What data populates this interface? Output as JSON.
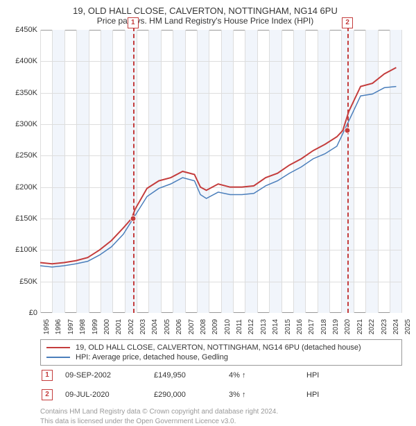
{
  "title_line1": "19, OLD HALL CLOSE, CALVERTON, NOTTINGHAM, NG14 6PU",
  "title_line2": "Price paid vs. HM Land Registry's House Price Index (HPI)",
  "chart": {
    "type": "line",
    "background_color": "#ffffff",
    "alt_band_color": "#f1f5fb",
    "grid_color": "#dddddd",
    "border_color": "#999999",
    "ylim": [
      0,
      450000
    ],
    "ytick_step": 50000,
    "yticklabels": [
      "£0",
      "£50K",
      "£100K",
      "£150K",
      "£200K",
      "£250K",
      "£300K",
      "£350K",
      "£400K",
      "£450K"
    ],
    "xyears": [
      1995,
      1996,
      1997,
      1998,
      1999,
      2000,
      2001,
      2002,
      2003,
      2004,
      2005,
      2006,
      2007,
      2008,
      2009,
      2010,
      2011,
      2012,
      2013,
      2014,
      2015,
      2016,
      2017,
      2018,
      2019,
      2020,
      2021,
      2022,
      2023,
      2024,
      2025
    ],
    "x_domain": [
      1995,
      2025.5
    ],
    "series": [
      {
        "name": "property",
        "label": "19, OLD HALL CLOSE, CALVERTON, NOTTINGHAM, NG14 6PU (detached house)",
        "color": "#c43c3c",
        "line_width": 2,
        "points": [
          [
            1995,
            80000
          ],
          [
            1996,
            78000
          ],
          [
            1997,
            80000
          ],
          [
            1998,
            83000
          ],
          [
            1999,
            88000
          ],
          [
            2000,
            100000
          ],
          [
            2001,
            115000
          ],
          [
            2002,
            135000
          ],
          [
            2002.7,
            150000
          ],
          [
            2003,
            165000
          ],
          [
            2004,
            198000
          ],
          [
            2005,
            210000
          ],
          [
            2006,
            215000
          ],
          [
            2007,
            225000
          ],
          [
            2008,
            220000
          ],
          [
            2008.5,
            200000
          ],
          [
            2009,
            195000
          ],
          [
            2010,
            205000
          ],
          [
            2011,
            200000
          ],
          [
            2012,
            200000
          ],
          [
            2013,
            202000
          ],
          [
            2014,
            215000
          ],
          [
            2015,
            222000
          ],
          [
            2016,
            235000
          ],
          [
            2017,
            245000
          ],
          [
            2018,
            258000
          ],
          [
            2019,
            268000
          ],
          [
            2020,
            280000
          ],
          [
            2020.5,
            290000
          ],
          [
            2021,
            320000
          ],
          [
            2022,
            360000
          ],
          [
            2023,
            365000
          ],
          [
            2024,
            380000
          ],
          [
            2025,
            390000
          ]
        ]
      },
      {
        "name": "hpi",
        "label": "HPI: Average price, detached house, Gedling",
        "color": "#4a7ebb",
        "line_width": 1.5,
        "points": [
          [
            1995,
            75000
          ],
          [
            1996,
            73000
          ],
          [
            1997,
            75000
          ],
          [
            1998,
            78000
          ],
          [
            1999,
            82000
          ],
          [
            2000,
            92000
          ],
          [
            2001,
            105000
          ],
          [
            2002,
            125000
          ],
          [
            2003,
            155000
          ],
          [
            2004,
            185000
          ],
          [
            2005,
            198000
          ],
          [
            2006,
            205000
          ],
          [
            2007,
            215000
          ],
          [
            2008,
            210000
          ],
          [
            2008.5,
            188000
          ],
          [
            2009,
            182000
          ],
          [
            2010,
            192000
          ],
          [
            2011,
            188000
          ],
          [
            2012,
            188000
          ],
          [
            2013,
            190000
          ],
          [
            2014,
            202000
          ],
          [
            2015,
            210000
          ],
          [
            2016,
            222000
          ],
          [
            2017,
            232000
          ],
          [
            2018,
            245000
          ],
          [
            2019,
            253000
          ],
          [
            2020,
            265000
          ],
          [
            2021,
            305000
          ],
          [
            2022,
            345000
          ],
          [
            2023,
            348000
          ],
          [
            2024,
            358000
          ],
          [
            2025,
            360000
          ]
        ]
      }
    ],
    "markers": [
      {
        "id": "1",
        "year": 2002.7,
        "value": 150000,
        "box_top": true
      },
      {
        "id": "2",
        "year": 2020.5,
        "value": 290000,
        "box_top": true
      }
    ],
    "marker_color": "#c43c3c"
  },
  "legend": [
    {
      "color": "#c43c3c",
      "label": "19, OLD HALL CLOSE, CALVERTON, NOTTINGHAM, NG14 6PU (detached house)"
    },
    {
      "color": "#4a7ebb",
      "label": "HPI: Average price, detached house, Gedling"
    }
  ],
  "transactions": [
    {
      "id": "1",
      "date": "09-SEP-2002",
      "price": "£149,950",
      "pct": "4%",
      "direction": "↑",
      "note": "HPI"
    },
    {
      "id": "2",
      "date": "09-JUL-2020",
      "price": "£290,000",
      "pct": "3%",
      "direction": "↑",
      "note": "HPI"
    }
  ],
  "footer_line1": "Contains HM Land Registry data © Crown copyright and database right 2024.",
  "footer_line2": "This data is licensed under the Open Government Licence v3.0."
}
